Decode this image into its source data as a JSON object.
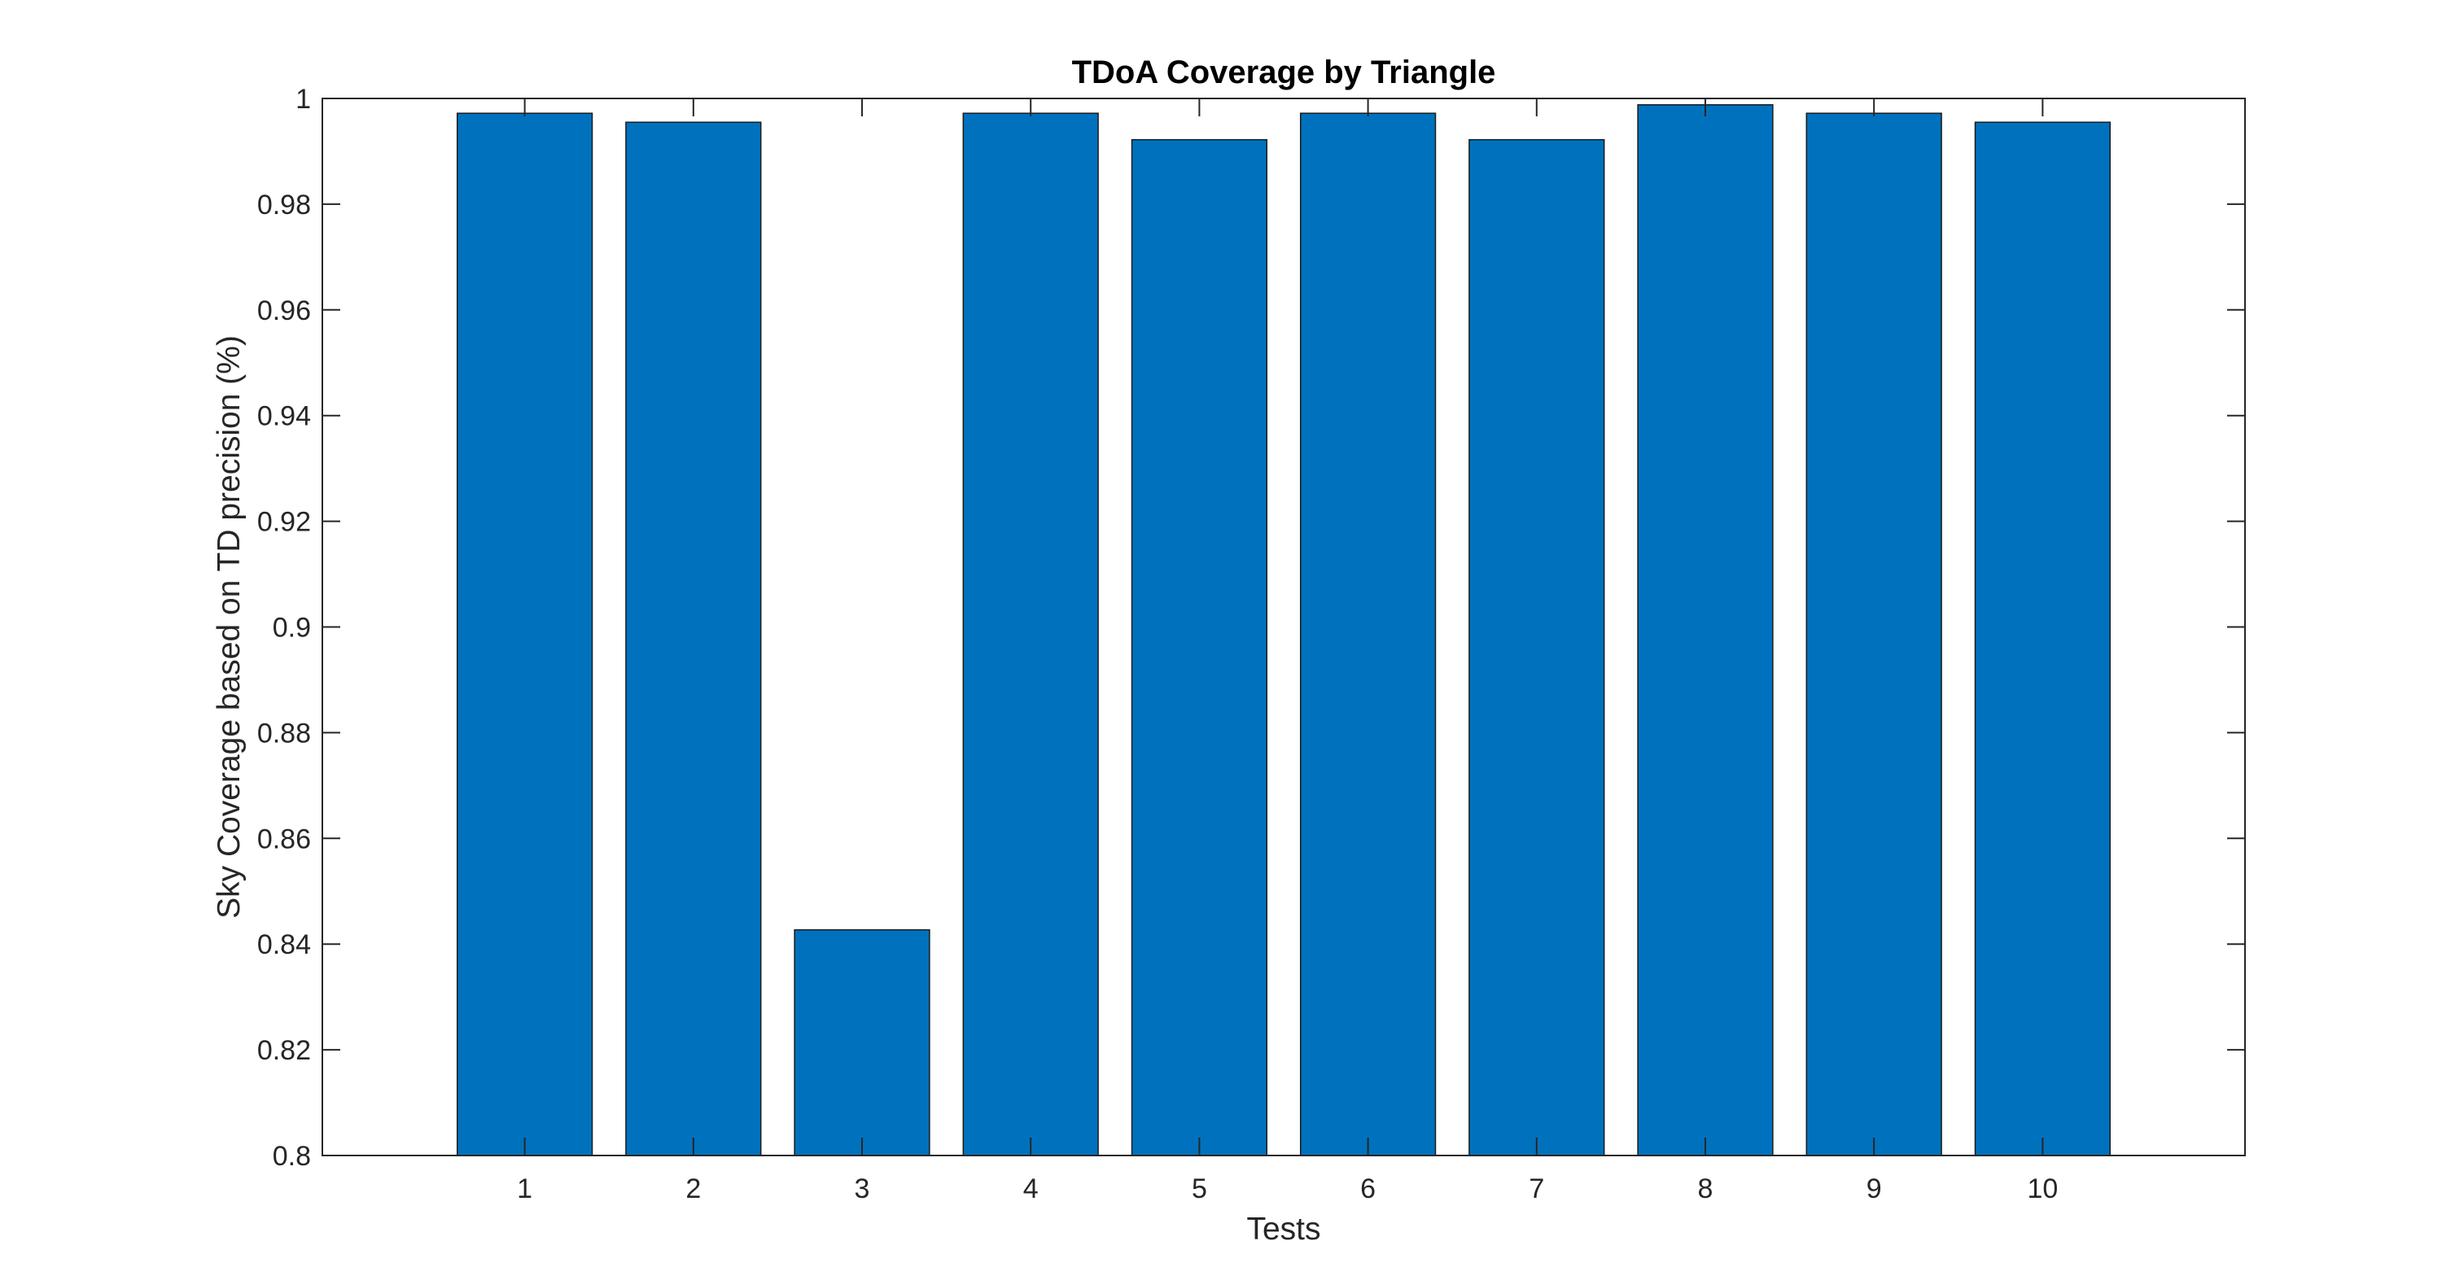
{
  "chart_data": {
    "type": "bar",
    "title": "TDoA Coverage by Triangle",
    "xlabel": "Tests",
    "ylabel": "Sky Coverage based on TD precision (%)",
    "categories": [
      "1",
      "2",
      "3",
      "4",
      "5",
      "6",
      "7",
      "8",
      "9",
      "10"
    ],
    "values": [
      0.9972,
      0.9955,
      0.8427,
      0.9972,
      0.9922,
      0.9972,
      0.9922,
      0.9988,
      0.9972,
      0.9955
    ],
    "ylim": [
      0.8,
      1.0
    ],
    "xlim": [
      -0.2,
      11.2
    ],
    "yticks": [
      0.8,
      0.82,
      0.84,
      0.86,
      0.88,
      0.9,
      0.92,
      0.94,
      0.96,
      0.98,
      1.0
    ],
    "ytick_labels": [
      "0.8",
      "0.82",
      "0.84",
      "0.86",
      "0.88",
      "0.9",
      "0.92",
      "0.94",
      "0.96",
      "0.98",
      "1"
    ],
    "grid": false,
    "bar_color": "#0072BD",
    "bar_edge_color": "#1a1a1a",
    "axes_color": "#262626"
  }
}
